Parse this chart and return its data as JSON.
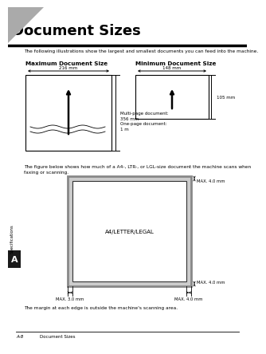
{
  "bg_color": "#ffffff",
  "title": "Document Sizes",
  "header_text": "The following illustrations show the largest and smallest documents you can feed into the machine.",
  "max_doc_title": "Maximum Document Size",
  "min_doc_title": "Minimum Document Size",
  "max_width_label": "216 mm",
  "min_width_label": "148 mm",
  "min_height_label": "105 mm",
  "multi_page_label": "Multi-page document:\n356 mm\nOne-page document:\n1 m",
  "scan_text": "The figure below shows how much of a A4-, LTR-, or LGL-size document the machine scans when\nfaxing or scanning.",
  "scan_label": "A4/LETTER/LEGAL",
  "max_top_label": "MAX. 4.0 mm",
  "max_bottom_label": "MAX. 4.0 mm",
  "max_left_label": "MAX. 3.0 mm",
  "max_right_label": "MAX. 4.0 mm",
  "margin_text": "The margin at each edge is outside the machine's scanning area.",
  "footer_left": "A-8",
  "footer_right": "Document Sizes",
  "side_label": "Specifications",
  "side_letter": "A",
  "tab_color": "#1a1a1a",
  "triangle_color": "#aaaaaa"
}
